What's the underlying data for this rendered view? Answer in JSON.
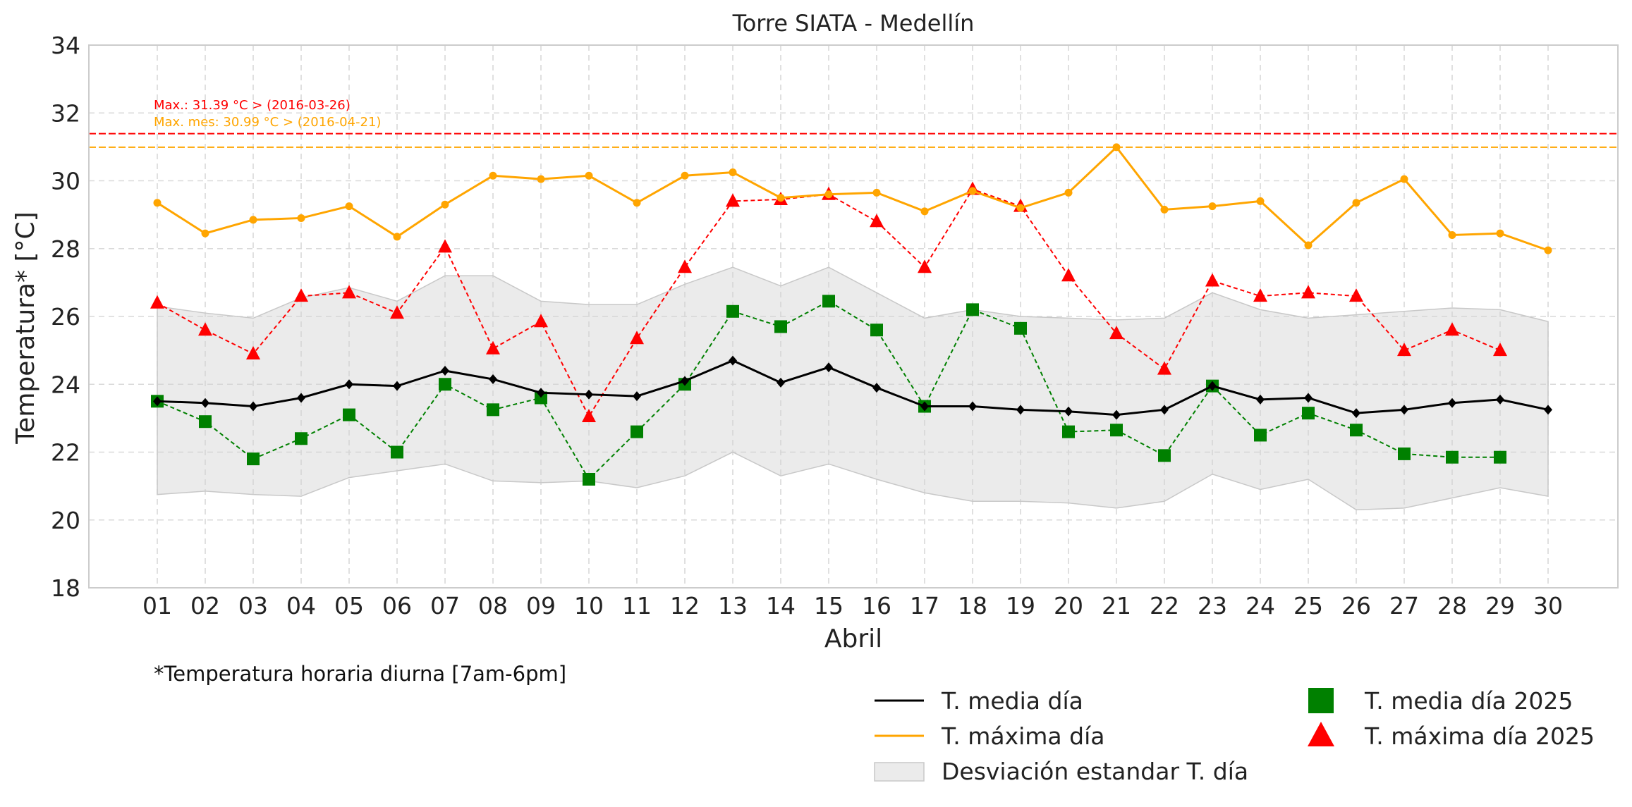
{
  "chart_data": {
    "type": "line",
    "title": "Torre SIATA - Medellín",
    "xlabel": "Abril",
    "ylabel": "Temperatura* [°C]",
    "footnote": "*Temperatura horaria diurna [7am-6pm]",
    "categories": [
      "01",
      "02",
      "03",
      "04",
      "05",
      "06",
      "07",
      "08",
      "09",
      "10",
      "11",
      "12",
      "13",
      "14",
      "15",
      "16",
      "17",
      "18",
      "19",
      "20",
      "21",
      "22",
      "23",
      "24",
      "25",
      "26",
      "27",
      "28",
      "29",
      "30"
    ],
    "ylim": [
      18,
      34
    ],
    "yticks": [
      18,
      20,
      22,
      24,
      26,
      28,
      30,
      32,
      34
    ],
    "grid": true,
    "series": [
      {
        "name": "T. media día",
        "color": "#000000",
        "style": "solid",
        "marker": "diamond",
        "values": [
          23.5,
          23.45,
          23.35,
          23.6,
          24.0,
          23.95,
          24.4,
          24.15,
          23.75,
          23.7,
          23.65,
          24.1,
          24.7,
          24.05,
          24.5,
          23.9,
          23.35,
          23.35,
          23.25,
          23.2,
          23.1,
          23.25,
          23.95,
          23.55,
          23.6,
          23.15,
          23.25,
          23.45,
          23.55,
          23.25
        ]
      },
      {
        "name": "T. máxima día",
        "color": "#ffa500",
        "style": "solid",
        "marker": "circle",
        "values": [
          29.35,
          28.45,
          28.85,
          28.9,
          29.25,
          28.35,
          29.3,
          30.15,
          30.05,
          30.15,
          29.35,
          30.15,
          30.25,
          29.5,
          29.6,
          29.65,
          29.1,
          29.7,
          29.2,
          29.65,
          30.99,
          29.15,
          29.25,
          29.4,
          28.1,
          29.35,
          30.05,
          28.4,
          28.45,
          27.95
        ]
      },
      {
        "name": "T. media día 2025",
        "color": "#008000",
        "style": "dashed",
        "marker": "square",
        "values": [
          23.5,
          22.9,
          21.8,
          22.4,
          23.1,
          22.0,
          24.0,
          23.25,
          23.6,
          21.2,
          22.6,
          24.0,
          26.15,
          25.7,
          26.45,
          25.6,
          23.35,
          26.2,
          25.65,
          22.6,
          22.65,
          21.9,
          23.95,
          22.5,
          23.15,
          22.65,
          21.95,
          21.85,
          21.85,
          null
        ]
      },
      {
        "name": "T. máxima día 2025",
        "color": "#ff0000",
        "style": "dashed",
        "marker": "triangle",
        "values": [
          26.4,
          25.6,
          24.9,
          26.6,
          26.7,
          26.1,
          28.05,
          25.05,
          25.85,
          23.05,
          25.35,
          27.45,
          29.4,
          29.45,
          29.6,
          28.8,
          27.45,
          29.75,
          29.25,
          27.2,
          25.5,
          24.45,
          27.05,
          26.6,
          26.7,
          26.6,
          25.0,
          25.6,
          25.0,
          null
        ]
      }
    ],
    "std_band": {
      "name": "Desviación estandar T. día",
      "color": "#d3d3d3",
      "upper": [
        26.3,
        26.1,
        25.95,
        26.55,
        26.85,
        26.45,
        27.2,
        27.2,
        26.45,
        26.35,
        26.35,
        26.95,
        27.45,
        26.9,
        27.45,
        26.7,
        25.95,
        26.2,
        26.0,
        25.95,
        25.9,
        25.95,
        26.7,
        26.2,
        25.95,
        26.05,
        26.15,
        26.25,
        26.2,
        25.85
      ],
      "lower": [
        20.75,
        20.85,
        20.75,
        20.7,
        21.25,
        21.45,
        21.65,
        21.15,
        21.1,
        21.15,
        20.95,
        21.3,
        22.0,
        21.3,
        21.65,
        21.2,
        20.8,
        20.55,
        20.55,
        20.5,
        20.35,
        20.55,
        21.35,
        20.9,
        21.2,
        20.3,
        20.35,
        20.65,
        20.95,
        20.7
      ]
    },
    "reference_lines": [
      {
        "label": "Max.: 31.39 °C  >  (2016-03-26)",
        "value": 31.39,
        "color": "#ff0000"
      },
      {
        "label": "Max. mes: 30.99 °C  >  (2016-04-21)",
        "value": 30.99,
        "color": "#ffa500"
      }
    ],
    "legend": {
      "placement": "bottom-right",
      "entries": [
        {
          "label": "T. media día",
          "kind": "line",
          "color": "#000000"
        },
        {
          "label": "T. máxima día",
          "kind": "line",
          "color": "#ffa500"
        },
        {
          "label": "Desviación estandar T. día",
          "kind": "band",
          "color": "#d3d3d3"
        },
        {
          "label": "T. media día 2025",
          "kind": "square",
          "color": "#008000"
        },
        {
          "label": "T. máxima día 2025",
          "kind": "triangle",
          "color": "#ff0000"
        }
      ]
    }
  }
}
